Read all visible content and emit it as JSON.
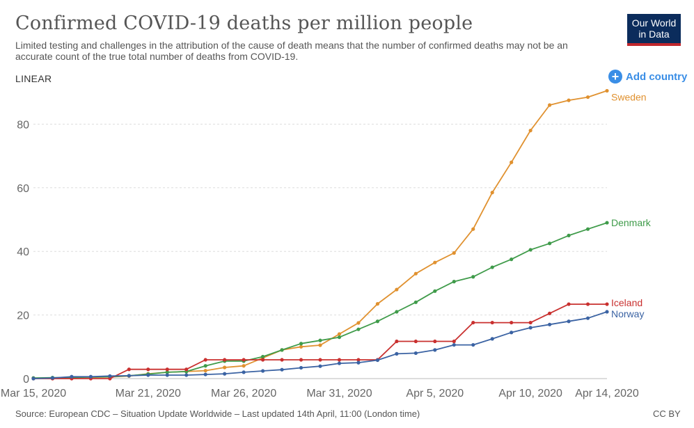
{
  "header": {
    "title": "Confirmed COVID-19 deaths per million people",
    "subtitle": "Limited testing and challenges in the attribution of the cause of death means that the number of confirmed deaths may not be an accurate count of the true total number of deaths from COVID-19.",
    "logo_line1": "Our World",
    "logo_line2": "in Data"
  },
  "controls": {
    "scale_label": "LINEAR",
    "add_country_label": "Add country"
  },
  "footer": {
    "source": "Source: European CDC – Situation Update Worldwide – Last updated 14th April, 11:00 (London time)",
    "license": "CC BY"
  },
  "colors": {
    "Sweden": "#e0912f",
    "Denmark": "#3f9b4a",
    "Iceland": "#c9302f",
    "Norway": "#3b63a3",
    "grid": "#dddddd",
    "axis_text": "#666666",
    "brand": "#0b2c5c"
  },
  "chart_data": {
    "type": "line",
    "x": [
      "Mar 15, 2020",
      "Mar 16, 2020",
      "Mar 17, 2020",
      "Mar 18, 2020",
      "Mar 19, 2020",
      "Mar 20, 2020",
      "Mar 21, 2020",
      "Mar 22, 2020",
      "Mar 23, 2020",
      "Mar 24, 2020",
      "Mar 25, 2020",
      "Mar 26, 2020",
      "Mar 27, 2020",
      "Mar 28, 2020",
      "Mar 29, 2020",
      "Mar 30, 2020",
      "Mar 31, 2020",
      "Apr 1, 2020",
      "Apr 2, 2020",
      "Apr 3, 2020",
      "Apr 4, 2020",
      "Apr 5, 2020",
      "Apr 6, 2020",
      "Apr 7, 2020",
      "Apr 8, 2020",
      "Apr 9, 2020",
      "Apr 10, 2020",
      "Apr 11, 2020",
      "Apr 12, 2020",
      "Apr 13, 2020",
      "Apr 14, 2020"
    ],
    "x_ticks": [
      "Mar 15, 2020",
      "Mar 21, 2020",
      "Mar 26, 2020",
      "Mar 31, 2020",
      "Apr 5, 2020",
      "Apr 10, 2020",
      "Apr 14, 2020"
    ],
    "y_ticks": [
      0,
      20,
      40,
      60,
      80
    ],
    "ylim": [
      0,
      92
    ],
    "grid": true,
    "legend": "line-end labels",
    "series": [
      {
        "name": "Sweden",
        "values": [
          0.1,
          0.2,
          0.3,
          0.4,
          0.5,
          0.8,
          1.5,
          2.0,
          2.2,
          2.5,
          3.5,
          4.0,
          6.5,
          9.0,
          10.0,
          10.5,
          14.0,
          17.5,
          23.5,
          28.0,
          33.0,
          36.5,
          39.5,
          47.0,
          58.5,
          68.0,
          78.0,
          86.0,
          87.5,
          88.5,
          90.5
        ]
      },
      {
        "name": "Denmark",
        "values": [
          0.2,
          0.3,
          0.3,
          0.5,
          0.6,
          0.9,
          1.4,
          2.0,
          2.2,
          4.0,
          5.5,
          5.5,
          6.9,
          9.0,
          11.0,
          12.0,
          13.0,
          15.5,
          18.0,
          21.0,
          24.0,
          27.5,
          30.5,
          32.0,
          35.0,
          37.5,
          40.5,
          42.5,
          45.0,
          47.0,
          49.0
        ]
      },
      {
        "name": "Iceland",
        "values": [
          0,
          0,
          0,
          0,
          0,
          2.9,
          2.9,
          2.9,
          2.9,
          5.9,
          5.9,
          5.9,
          5.9,
          5.9,
          5.9,
          5.9,
          5.9,
          5.9,
          5.9,
          11.7,
          11.7,
          11.7,
          11.7,
          17.6,
          17.6,
          17.6,
          17.6,
          20.5,
          23.4,
          23.4,
          23.4
        ]
      },
      {
        "name": "Norway",
        "values": [
          0,
          0.2,
          0.6,
          0.6,
          0.8,
          0.9,
          1.1,
          1.1,
          1.1,
          1.3,
          1.5,
          2.0,
          2.4,
          2.8,
          3.4,
          3.9,
          4.8,
          5.0,
          5.8,
          7.8,
          8.0,
          9.0,
          10.6,
          10.6,
          12.5,
          14.5,
          16.0,
          17.0,
          18.0,
          19.0,
          21.0
        ]
      }
    ]
  }
}
